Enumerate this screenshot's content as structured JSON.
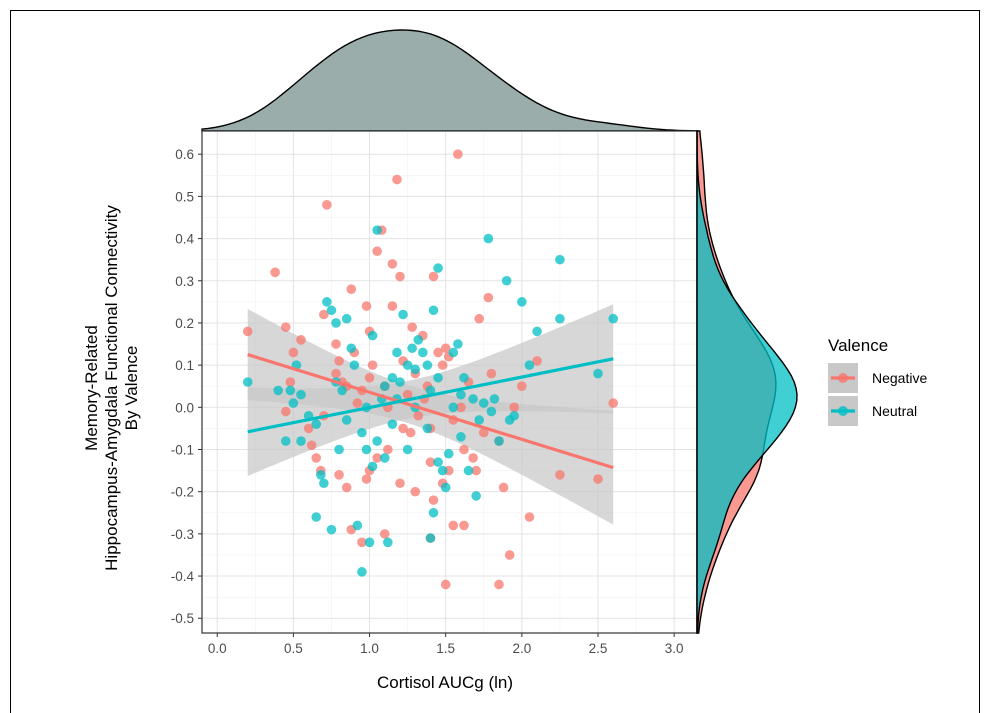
{
  "chart_data": {
    "type": "scatter",
    "xlabel": "Cortisol AUCg (ln)",
    "ylabel": [
      "Memory-Related",
      "Hippocampus-Amygdala Functional Connectivity",
      "By Valence"
    ],
    "xlim": [
      -0.1,
      3.15
    ],
    "ylim": [
      -0.535,
      0.655
    ],
    "x_ticks": [
      "0.0",
      "0.5",
      "1.0",
      "1.5",
      "2.0",
      "2.5",
      "3.0"
    ],
    "y_ticks": [
      "0.6",
      "0.5",
      "0.4",
      "0.3",
      "0.2",
      "0.1",
      "0.0",
      "-0.1",
      "-0.2",
      "-0.3",
      "-0.4",
      "-0.5"
    ],
    "grid": true,
    "legend": {
      "title": "Valence",
      "position": "right",
      "entries": [
        "Negative",
        "Neutral"
      ]
    },
    "colors": {
      "Negative": "#F8766D",
      "Neutral": "#00BFC4",
      "band": "#c8c8c8",
      "x_density": "#8FA4A2"
    },
    "series": [
      {
        "name": "Negative",
        "fit": {
          "x": [
            0.2,
            2.6
          ],
          "y": [
            0.125,
            -0.143
          ]
        },
        "points": [
          [
            0.2,
            0.18
          ],
          [
            0.38,
            0.32
          ],
          [
            0.45,
            0.19
          ],
          [
            0.5,
            0.13
          ],
          [
            0.55,
            0.16
          ],
          [
            0.48,
            0.06
          ],
          [
            0.45,
            -0.01
          ],
          [
            0.62,
            -0.09
          ],
          [
            0.68,
            -0.15
          ],
          [
            0.72,
            0.48
          ],
          [
            0.7,
            0.22
          ],
          [
            0.78,
            0.15
          ],
          [
            0.8,
            0.11
          ],
          [
            0.82,
            0.06
          ],
          [
            0.85,
            0.05
          ],
          [
            0.88,
            0.28
          ],
          [
            0.9,
            0.13
          ],
          [
            0.95,
            0.04
          ],
          [
            0.98,
            0.24
          ],
          [
            1.0,
            0.18
          ],
          [
            1.02,
            0.1
          ],
          [
            1.05,
            0.37
          ],
          [
            1.08,
            0.42
          ],
          [
            1.1,
            0.05
          ],
          [
            1.12,
            0.0
          ],
          [
            1.15,
            0.34
          ],
          [
            1.18,
            0.54
          ],
          [
            1.2,
            0.31
          ],
          [
            1.22,
            0.11
          ],
          [
            1.25,
            0.03
          ],
          [
            1.28,
            0.19
          ],
          [
            1.3,
            0.08
          ],
          [
            1.32,
            -0.02
          ],
          [
            1.35,
            0.17
          ],
          [
            1.38,
            0.05
          ],
          [
            1.4,
            -0.05
          ],
          [
            1.42,
            0.31
          ],
          [
            1.45,
            0.13
          ],
          [
            1.48,
            0.1
          ],
          [
            1.5,
            0.14
          ],
          [
            1.52,
            0.12
          ],
          [
            1.55,
            -0.03
          ],
          [
            1.58,
            0.6
          ],
          [
            1.6,
            0.0
          ],
          [
            1.62,
            -0.1
          ],
          [
            1.65,
            0.06
          ],
          [
            1.68,
            -0.12
          ],
          [
            1.7,
            -0.15
          ],
          [
            1.72,
            0.21
          ],
          [
            1.75,
            -0.06
          ],
          [
            1.78,
            0.26
          ],
          [
            1.8,
            0.08
          ],
          [
            1.85,
            -0.08
          ],
          [
            1.88,
            -0.19
          ],
          [
            1.92,
            -0.35
          ],
          [
            1.95,
            0.0
          ],
          [
            2.0,
            0.05
          ],
          [
            2.05,
            -0.26
          ],
          [
            2.1,
            0.11
          ],
          [
            2.25,
            -0.16
          ],
          [
            2.5,
            -0.17
          ],
          [
            2.6,
            0.01
          ],
          [
            1.85,
            -0.42
          ],
          [
            1.5,
            -0.42
          ],
          [
            1.1,
            -0.3
          ],
          [
            0.88,
            -0.29
          ],
          [
            0.95,
            -0.32
          ],
          [
            1.4,
            -0.31
          ],
          [
            1.55,
            -0.28
          ],
          [
            1.62,
            -0.28
          ],
          [
            1.2,
            -0.18
          ],
          [
            1.3,
            -0.2
          ],
          [
            1.42,
            -0.22
          ],
          [
            0.85,
            -0.19
          ],
          [
            1.0,
            -0.15
          ],
          [
            1.05,
            -0.12
          ],
          [
            0.8,
            -0.16
          ],
          [
            0.65,
            -0.12
          ],
          [
            1.12,
            -0.1
          ],
          [
            1.22,
            -0.05
          ],
          [
            1.27,
            -0.06
          ],
          [
            1.4,
            -0.13
          ],
          [
            1.48,
            -0.18
          ],
          [
            1.52,
            -0.15
          ],
          [
            1.36,
            0.02
          ],
          [
            0.92,
            0.01
          ],
          [
            0.7,
            -0.02
          ],
          [
            0.6,
            -0.05
          ],
          [
            0.78,
            0.08
          ],
          [
            1.15,
            0.24
          ],
          [
            1.0,
            0.07
          ],
          [
            0.98,
            -0.17
          ]
        ]
      },
      {
        "name": "Neutral",
        "fit": {
          "x": [
            0.2,
            2.6
          ],
          "y": [
            -0.058,
            0.115
          ]
        },
        "points": [
          [
            0.2,
            0.06
          ],
          [
            0.4,
            0.04
          ],
          [
            0.45,
            -0.08
          ],
          [
            0.48,
            0.04
          ],
          [
            0.5,
            0.01
          ],
          [
            0.52,
            0.1
          ],
          [
            0.55,
            0.03
          ],
          [
            0.55,
            -0.08
          ],
          [
            0.65,
            -0.26
          ],
          [
            0.65,
            -0.04
          ],
          [
            0.68,
            -0.16
          ],
          [
            0.7,
            -0.18
          ],
          [
            0.72,
            0.25
          ],
          [
            0.75,
            0.23
          ],
          [
            0.75,
            -0.29
          ],
          [
            0.78,
            0.2
          ],
          [
            0.8,
            -0.1
          ],
          [
            0.82,
            0.04
          ],
          [
            0.85,
            0.21
          ],
          [
            0.88,
            0.14
          ],
          [
            0.9,
            0.1
          ],
          [
            0.92,
            -0.28
          ],
          [
            0.95,
            -0.39
          ],
          [
            0.98,
            -0.1
          ],
          [
            1.0,
            -0.32
          ],
          [
            1.02,
            0.17
          ],
          [
            1.05,
            0.42
          ],
          [
            1.05,
            -0.08
          ],
          [
            1.08,
            0.02
          ],
          [
            1.1,
            -0.12
          ],
          [
            1.12,
            -0.32
          ],
          [
            1.15,
            0.07
          ],
          [
            1.18,
            0.13
          ],
          [
            1.2,
            0.06
          ],
          [
            1.22,
            0.22
          ],
          [
            1.25,
            0.1
          ],
          [
            1.28,
            0.14
          ],
          [
            1.3,
            0.09
          ],
          [
            1.32,
            0.16
          ],
          [
            1.35,
            0.13
          ],
          [
            1.38,
            0.1
          ],
          [
            1.4,
            -0.31
          ],
          [
            1.42,
            -0.25
          ],
          [
            1.42,
            0.23
          ],
          [
            1.45,
            0.33
          ],
          [
            1.45,
            0.07
          ],
          [
            1.48,
            -0.15
          ],
          [
            1.5,
            -0.19
          ],
          [
            1.52,
            -0.11
          ],
          [
            1.55,
            0.13
          ],
          [
            1.58,
            0.15
          ],
          [
            1.6,
            -0.07
          ],
          [
            1.62,
            0.07
          ],
          [
            1.65,
            -0.15
          ],
          [
            1.68,
            0.02
          ],
          [
            1.7,
            -0.21
          ],
          [
            1.75,
            0.01
          ],
          [
            1.78,
            0.4
          ],
          [
            1.8,
            -0.01
          ],
          [
            1.85,
            -0.08
          ],
          [
            1.9,
            0.3
          ],
          [
            1.95,
            -0.02
          ],
          [
            2.0,
            0.25
          ],
          [
            2.05,
            0.1
          ],
          [
            2.1,
            0.18
          ],
          [
            2.25,
            0.35
          ],
          [
            2.25,
            0.21
          ],
          [
            2.5,
            0.08
          ],
          [
            2.6,
            0.21
          ],
          [
            1.18,
            0.02
          ],
          [
            1.25,
            -0.1
          ],
          [
            1.38,
            -0.05
          ],
          [
            1.45,
            -0.13
          ],
          [
            0.95,
            -0.06
          ],
          [
            1.02,
            -0.14
          ],
          [
            0.85,
            -0.03
          ],
          [
            0.78,
            0.06
          ],
          [
            0.6,
            -0.02
          ],
          [
            1.15,
            -0.04
          ],
          [
            1.3,
            0.0
          ],
          [
            1.55,
            0.0
          ],
          [
            1.6,
            0.03
          ],
          [
            1.72,
            -0.03
          ],
          [
            1.82,
            0.02
          ],
          [
            1.92,
            -0.03
          ],
          [
            1.4,
            0.04
          ],
          [
            1.1,
            0.05
          ],
          [
            0.98,
            0.0
          ]
        ]
      }
    ]
  }
}
